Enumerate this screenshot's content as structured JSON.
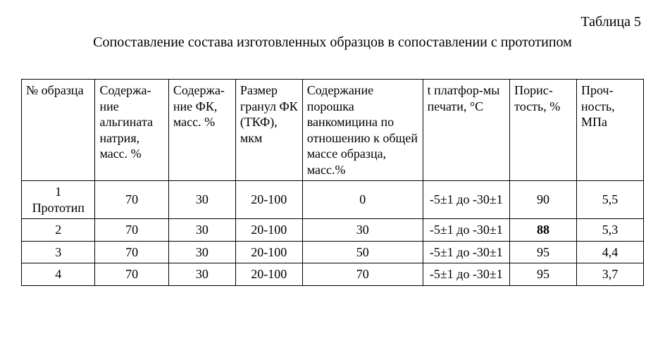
{
  "table_label": "Таблица 5",
  "caption": "Сопоставление состава изготовленных образцов в сопоставлении с прототипом",
  "columns": [
    "№ образца",
    "Содержа-ние альгината натрия, масс. %",
    "Содержа-ние ФК, масс. %",
    "Размер гранул ФК (ТКФ), мкм",
    "Содержание порошка ванкомицина по отношению к общей массе образца, масс.%",
    "t платфор-мы печати, °С",
    "Порис-тость, %",
    "Проч-ность, МПа"
  ],
  "rows": [
    {
      "sample": "1\nПрототип",
      "alg": "70",
      "fk": "30",
      "gran": "20-100",
      "vanc": "0",
      "temp": "-5±1 до -30±1",
      "por": "90",
      "por_bold": false,
      "str": "5,5"
    },
    {
      "sample": "2",
      "alg": "70",
      "fk": "30",
      "gran": "20-100",
      "vanc": "30",
      "temp": "-5±1 до -30±1",
      "por": "88",
      "por_bold": true,
      "str": "5,3"
    },
    {
      "sample": "3",
      "alg": "70",
      "fk": "30",
      "gran": "20-100",
      "vanc": "50",
      "temp": "-5±1 до -30±1",
      "por": "95",
      "por_bold": false,
      "str": "4,4"
    },
    {
      "sample": "4",
      "alg": "70",
      "fk": "30",
      "gran": "20-100",
      "vanc": "70",
      "temp": "-5±1 до -30±1",
      "por": "95",
      "por_bold": false,
      "str": "3,7"
    }
  ]
}
